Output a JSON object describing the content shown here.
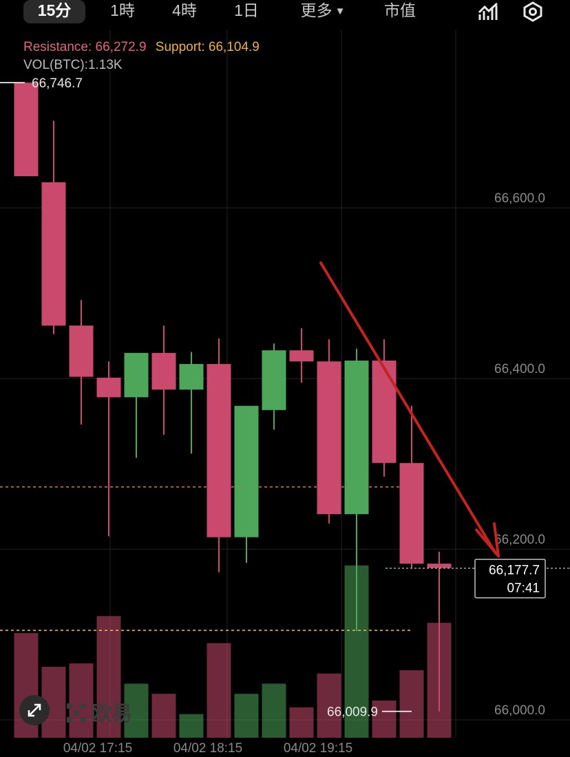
{
  "tabs": [
    {
      "label": "15分",
      "active": true
    },
    {
      "label": "1時",
      "active": false
    },
    {
      "label": "4時",
      "active": false
    },
    {
      "label": "1日",
      "active": false
    },
    {
      "label": "更多",
      "active": false,
      "dropdown": true
    },
    {
      "label": "市值",
      "active": false
    }
  ],
  "icons": {
    "indicators": "chart-indicator-icon",
    "settings": "settings-icon",
    "expand": "expand-icon"
  },
  "legend": {
    "resistance": "Resistance: 66,272.9",
    "support": "Support: 66,104.9",
    "volume": "VOL(BTC):1.13K"
  },
  "watermark": "欧易",
  "colors": {
    "up": "#4ea65a",
    "down": "#c94a6d",
    "background": "#000000",
    "resistance": "#e4657f",
    "support": "#f0b04a",
    "annotation_arrow": "#c4231f"
  },
  "chart_data": {
    "type": "candlestick",
    "time_labels": [
      "04/02 17:15",
      "04/02 18:15",
      "04/02 19:15"
    ],
    "y_ticks": [
      "66,600.0",
      "66,400.0",
      "66,200.0",
      "66,000.0"
    ],
    "y_tick_values": [
      66600,
      66400,
      66200,
      66000
    ],
    "ylim": [
      65975,
      66755
    ],
    "resistance": 66272.9,
    "support": 66104.9,
    "high_label": "66,746.7",
    "high_value": 66746.7,
    "low_label": "66,009.9",
    "low_value": 66009.9,
    "current_price": {
      "label": "66,177.7",
      "countdown": "07:41",
      "value": 66177.7
    },
    "candles": [
      {
        "o": 66746.7,
        "h": 66746.7,
        "l": 66637,
        "c": 66637,
        "vol": 0.31
      },
      {
        "o": 66630,
        "h": 66702,
        "l": 66452,
        "c": 66462,
        "vol": 0.21
      },
      {
        "o": 66462,
        "h": 66492,
        "l": 66346,
        "c": 66402,
        "vol": 0.22
      },
      {
        "o": 66401,
        "h": 66420,
        "l": 66215,
        "c": 66378,
        "vol": 0.36
      },
      {
        "o": 66378,
        "h": 66428,
        "l": 66307,
        "c": 66430,
        "vol": 0.16
      },
      {
        "o": 66430,
        "h": 66462,
        "l": 66334,
        "c": 66387,
        "vol": 0.13
      },
      {
        "o": 66387,
        "h": 66431,
        "l": 66312,
        "c": 66417,
        "vol": 0.07
      },
      {
        "o": 66417,
        "h": 66447,
        "l": 66173,
        "c": 66214,
        "vol": 0.28
      },
      {
        "o": 66214,
        "h": 66362,
        "l": 66184,
        "c": 66368,
        "vol": 0.13
      },
      {
        "o": 66363,
        "h": 66441,
        "l": 66340,
        "c": 66433,
        "vol": 0.16
      },
      {
        "o": 66433,
        "h": 66459,
        "l": 66395,
        "c": 66420,
        "vol": 0.09
      },
      {
        "o": 66420,
        "h": 66446,
        "l": 66230,
        "c": 66241,
        "vol": 0.19
      },
      {
        "o": 66241,
        "h": 66435,
        "l": 66104,
        "c": 66421,
        "vol": 0.51
      },
      {
        "o": 66421,
        "h": 66446,
        "l": 66285,
        "c": 66301,
        "vol": 0.11
      },
      {
        "o": 66301,
        "h": 66368,
        "l": 66178,
        "c": 66183,
        "vol": 0.2
      },
      {
        "o": 66183,
        "h": 66197,
        "l": 66009.9,
        "c": 66178,
        "vol": 0.34
      }
    ],
    "annotation": "down-arrow"
  }
}
